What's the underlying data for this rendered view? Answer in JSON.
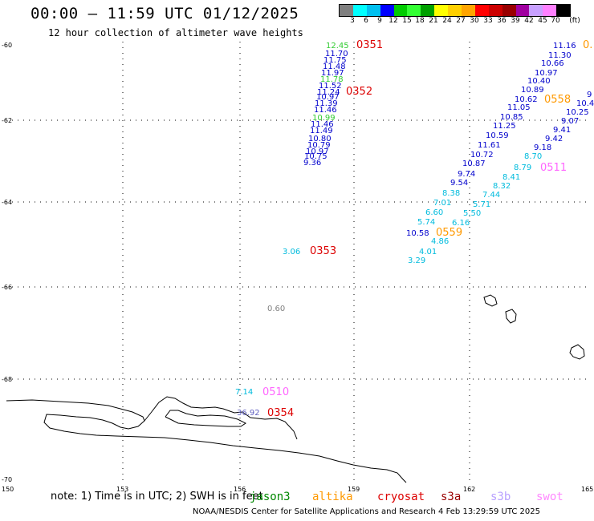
{
  "header": {
    "title": "00:00 – 11:59 UTC 01/12/2025",
    "subtitle": "12 hour collection of altimeter wave heights"
  },
  "colorbar": {
    "unit": "(ft)",
    "levels": [
      "3",
      "6",
      "9",
      "12",
      "15",
      "18",
      "21",
      "24",
      "27",
      "30",
      "33",
      "36",
      "39",
      "42",
      "45",
      "70"
    ],
    "colors": [
      "#808080",
      "#00ffff",
      "#00c0f0",
      "#0000ff",
      "#00cc00",
      "#33ff33",
      "#00a000",
      "#ffff00",
      "#ffd000",
      "#ffa500",
      "#ff0000",
      "#cc0000",
      "#990000",
      "#a000a0",
      "#c8a0ff",
      "#ff80ff",
      "#000000"
    ]
  },
  "axes": {
    "lat_labels": [
      "-60",
      "-62",
      "-64",
      "-66",
      "-68",
      "-70"
    ],
    "lon_labels": [
      "150",
      "153",
      "156",
      "159",
      "162",
      "165"
    ]
  },
  "tracks": [
    {
      "name": "north-track-green",
      "color": "#33cc33",
      "labels": [
        "12.45"
      ]
    },
    {
      "name": "north-track",
      "color": "#0000cc",
      "labels": [
        "11.70",
        "11.75",
        "11.48",
        "11.97",
        "11.78",
        "11.52",
        "11.24",
        "10.97",
        "11.39",
        "11.46",
        "10.99",
        "11.46",
        "11.49",
        "10.80",
        "10.79",
        "10.97",
        "10.75",
        "9.36"
      ]
    },
    {
      "name": "east-track",
      "color": "#0000cc",
      "labels": [
        "11.16",
        "11.30",
        "10.66",
        "10.97",
        "10.40",
        "10.89",
        "10.62",
        "11.05",
        "10.85",
        "11.25",
        "10.59",
        "11.61",
        "10.72",
        "10.87",
        "9.74",
        "9.54",
        "10.58",
        "9",
        "10.4",
        "10.25",
        "9.07",
        "9.41",
        "9.42",
        "9.18"
      ]
    },
    {
      "name": "cyan-track",
      "color": "#00bbdd",
      "labels": [
        "8.70",
        "8.79",
        "8.41",
        "8.32",
        "7.44",
        "5.71",
        "5.50",
        "6.16",
        "8.38",
        "7.01",
        "6.60",
        "5.74",
        "4.86",
        "4.01",
        "3.29",
        "3.06",
        "7.14",
        "36.92"
      ]
    },
    {
      "name": "gray",
      "color": "#808080",
      "labels": [
        "0.60"
      ]
    }
  ],
  "passes": [
    "0351",
    "0352",
    "0558",
    "0511",
    "0559",
    "0353",
    "0510",
    "0354",
    "0."
  ],
  "legend": {
    "note": "note: 1) Time is in UTC; 2) SWH is in feet",
    "satellites": [
      {
        "name": "jason3",
        "color": "#008800"
      },
      {
        "name": "altika",
        "color": "#ff9900"
      },
      {
        "name": "cryosat",
        "color": "#dd0000"
      },
      {
        "name": "s3a",
        "color": "#990000"
      },
      {
        "name": "s3b",
        "color": "#b8a0ff"
      },
      {
        "name": "swot",
        "color": "#ff88ff"
      }
    ]
  },
  "credit": "NOAA/NESDIS Center for Satellite Applications and Research    4 Feb 13:29:59 UTC 2025"
}
